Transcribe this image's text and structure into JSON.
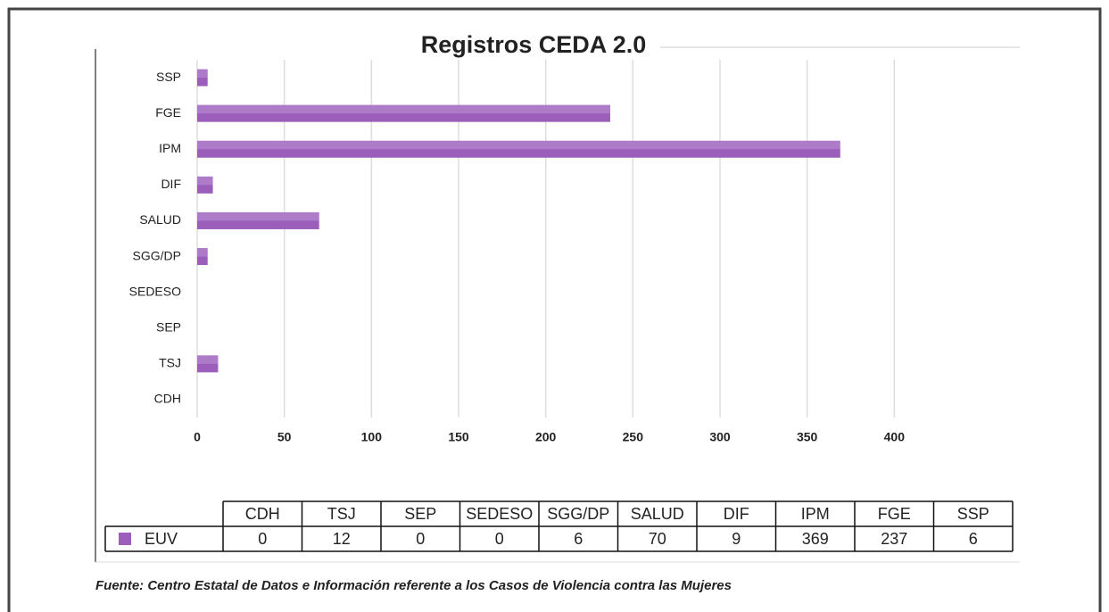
{
  "chart_data": {
    "type": "bar",
    "orientation": "horizontal",
    "title": "Registros CEDA 2.0",
    "categories": [
      "CDH",
      "TSJ",
      "SEP",
      "SEDESO",
      "SGG/DP",
      "SALUD",
      "DIF",
      "IPM",
      "FGE",
      "SSP"
    ],
    "series": [
      {
        "name": "EUV",
        "color": "#9b5fbb",
        "values": [
          0,
          12,
          0,
          0,
          6,
          70,
          9,
          369,
          237,
          6
        ]
      }
    ],
    "xlim": [
      0,
      450
    ],
    "xticks": [
      0,
      50,
      100,
      150,
      200,
      250,
      300,
      350,
      400
    ],
    "grid": true,
    "source": "Fuente: Centro Estatal de Datos e Información referente a los Casos de Violencia contra las Mujeres"
  }
}
